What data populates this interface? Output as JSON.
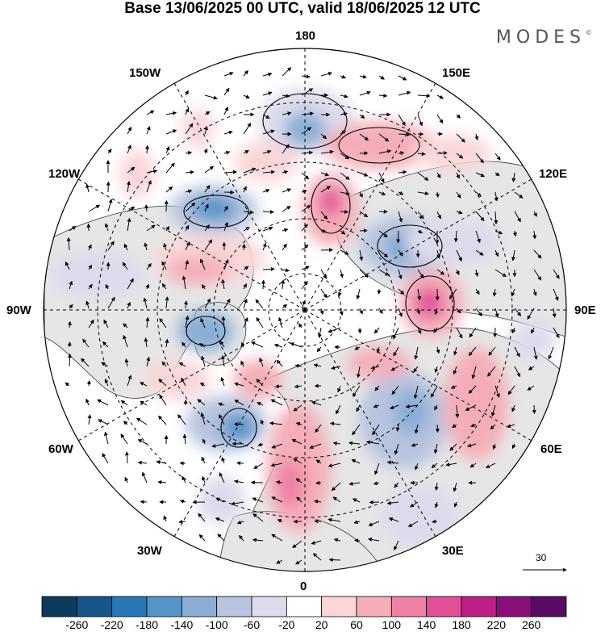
{
  "title": "Base 13/06/2025 00 UTC, valid 18/06/2025 12 UTC",
  "logo": {
    "text": "MODES",
    "mark": "©"
  },
  "longitude_labels": {
    "deg0": "0",
    "deg180": "180",
    "deg30w": "30W",
    "deg60w": "60W",
    "deg90w": "90W",
    "deg120w": "120W",
    "deg150w": "150W",
    "deg30e": "30E",
    "deg60e": "60E",
    "deg90e": "90E",
    "deg120e": "120E",
    "deg150e": "150E"
  },
  "reference_vector": {
    "value": "30"
  },
  "colorbar": {
    "ticks": [
      "-260",
      "-220",
      "-180",
      "-140",
      "-100",
      "-60",
      "-20",
      "20",
      "60",
      "100",
      "140",
      "180",
      "220",
      "260"
    ],
    "colors": [
      "#0d3b5e",
      "#15568a",
      "#2a77b5",
      "#5594c9",
      "#8aaed6",
      "#b7c3df",
      "#dcdbec",
      "#ffffff",
      "#fad6d9",
      "#f5aeb9",
      "#ef81a5",
      "#e24f98",
      "#bd1f86",
      "#8a0f7a",
      "#5a0a63"
    ]
  },
  "anomaly_colors": {
    "neg_light": "#dcdbec",
    "neg_mid": "#b7c3df",
    "neg_strong": "#8aaed6",
    "neg_deep": "#5594c9",
    "pos_light": "#fad6d9",
    "pos_mid": "#f5aeb9",
    "pos_strong": "#ef81a5",
    "pos_deep": "#e24f98",
    "land": "#e8e8e8"
  }
}
